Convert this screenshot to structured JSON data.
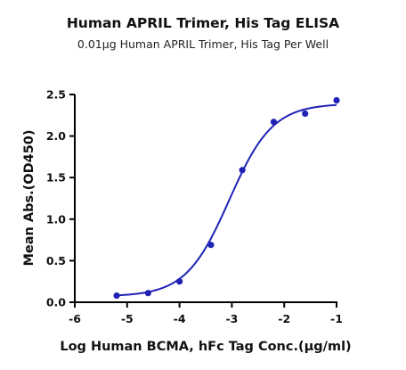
{
  "chart_data": {
    "type": "scatter",
    "title": "Human APRIL Trimer, His Tag ELISA",
    "subtitle": "0.01μg Human APRIL Trimer, His Tag Per Well",
    "xlabel": "Log Human BCMA, hFc Tag Conc.(μg/ml)",
    "ylabel": "Mean Abs.(OD450)",
    "xlim": [
      -6,
      -1
    ],
    "ylim": [
      0,
      2.5
    ],
    "x_ticks": [
      -6,
      -5,
      -4,
      -3,
      -2,
      -1
    ],
    "x_tick_labels": [
      "-6",
      "-5",
      "-4",
      "-3",
      "-2",
      "-1"
    ],
    "y_ticks": [
      0.0,
      0.5,
      1.0,
      1.5,
      2.0,
      2.5
    ],
    "y_tick_labels": [
      "0.0",
      "0.5",
      "1.0",
      "1.5",
      "2.0",
      "2.5"
    ],
    "grid": false,
    "color": "#1f22b5",
    "series": [
      {
        "points": [
          {
            "x": -5.2,
            "y": 0.08
          },
          {
            "x": -4.6,
            "y": 0.11
          },
          {
            "x": -4.0,
            "y": 0.25
          },
          {
            "x": -3.4,
            "y": 0.69
          },
          {
            "x": -2.8,
            "y": 1.59
          },
          {
            "x": -2.2,
            "y": 2.17
          },
          {
            "x": -1.6,
            "y": 2.27
          },
          {
            "x": -1.0,
            "y": 2.43
          }
        ],
        "fit": {
          "model": "4PL",
          "bottom": 0.07,
          "top": 2.39,
          "logEC50": -3.05,
          "hill": 1.05,
          "x_range": [
            -5.2,
            -1.0
          ]
        }
      }
    ]
  }
}
